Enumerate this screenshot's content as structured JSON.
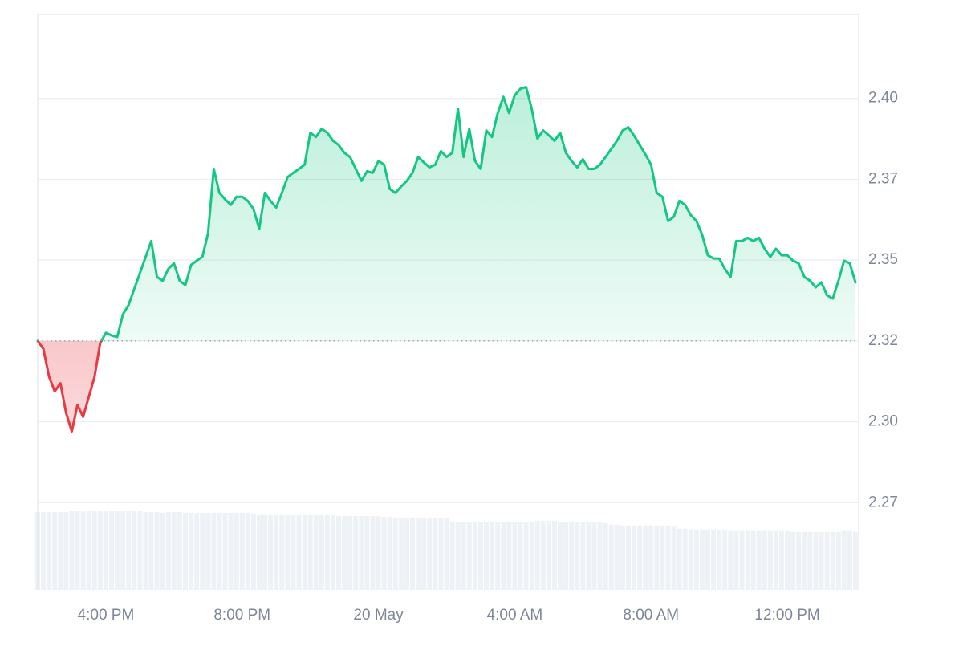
{
  "chart_data": {
    "type": "line",
    "categories": [
      null,
      null,
      null,
      null,
      null,
      null,
      null,
      null,
      null,
      null,
      null,
      null,
      "4:00 PM",
      null,
      null,
      null,
      null,
      null,
      null,
      null,
      null,
      null,
      null,
      null,
      null,
      null,
      null,
      null,
      null,
      null,
      null,
      null,
      null,
      null,
      null,
      null,
      "8:00 PM",
      null,
      null,
      null,
      null,
      null,
      null,
      null,
      null,
      null,
      null,
      null,
      null,
      null,
      null,
      null,
      null,
      null,
      null,
      null,
      null,
      null,
      null,
      null,
      "20 May",
      null,
      null,
      null,
      null,
      null,
      null,
      null,
      null,
      null,
      null,
      null,
      null,
      null,
      null,
      null,
      null,
      null,
      null,
      null,
      null,
      null,
      null,
      null,
      "4:00 AM",
      null,
      null,
      null,
      null,
      null,
      null,
      null,
      null,
      null,
      null,
      null,
      null,
      null,
      null,
      null,
      null,
      null,
      null,
      null,
      null,
      null,
      null,
      null,
      "8:00 AM",
      null,
      null,
      null,
      null,
      null,
      null,
      null,
      null,
      null,
      null,
      null,
      null,
      null,
      null,
      null,
      null,
      null,
      null,
      null,
      null,
      null,
      null,
      null,
      "12:00 PM",
      null,
      null,
      null,
      null,
      null,
      null,
      null,
      null,
      null,
      null,
      null,
      null
    ],
    "values": [
      2.325,
      2.3225,
      2.3139,
      2.3094,
      2.3119,
      2.3027,
      2.297,
      2.3052,
      2.3015,
      2.3077,
      2.3139,
      2.3243,
      2.3275,
      2.3267,
      2.3262,
      2.3332,
      2.3361,
      2.3411,
      2.346,
      2.351,
      2.3559,
      2.3448,
      2.3436,
      2.3473,
      2.349,
      2.3436,
      2.3423,
      2.3485,
      2.3498,
      2.351,
      2.3584,
      2.3782,
      2.3708,
      2.3688,
      2.3671,
      2.3696,
      2.3696,
      2.3683,
      2.3658,
      2.3597,
      2.3708,
      2.3683,
      2.3663,
      2.3708,
      2.3757,
      2.377,
      2.3782,
      2.3795,
      2.3894,
      2.3881,
      2.3906,
      2.3894,
      2.3869,
      2.3856,
      2.3832,
      2.3819,
      2.3782,
      2.3745,
      2.3775,
      2.377,
      2.3807,
      2.3795,
      2.372,
      2.3708,
      2.3728,
      2.3745,
      2.377,
      2.3819,
      2.3802,
      2.3787,
      2.3795,
      2.3837,
      2.3819,
      2.3832,
      2.3968,
      2.3819,
      2.3906,
      2.3807,
      2.3782,
      2.3901,
      2.3881,
      2.3955,
      2.4005,
      2.3955,
      2.401,
      2.403,
      2.4035,
      2.3968,
      2.3876,
      2.3901,
      2.3886,
      2.3869,
      2.3894,
      2.3832,
      2.3807,
      2.3787,
      2.3812,
      2.3782,
      2.3782,
      2.3795,
      2.3819,
      2.3844,
      2.3869,
      2.3901,
      2.3911,
      2.3886,
      2.3856,
      2.3827,
      2.3795,
      2.3708,
      2.3696,
      2.3621,
      2.3634,
      2.3683,
      2.3671,
      2.3639,
      2.3621,
      2.3579,
      2.3515,
      2.3505,
      2.3505,
      2.3473,
      2.3448,
      2.3559,
      2.3559,
      2.3569,
      2.3559,
      2.3569,
      2.3535,
      2.351,
      2.3535,
      2.3515,
      2.3515,
      2.3498,
      2.349,
      2.3448,
      2.3436,
      2.3416,
      2.3431,
      2.3391,
      2.3381,
      2.3436,
      2.3498,
      2.349,
      2.3431
    ],
    "up_color": "#16c784",
    "down_color": "#ea3943",
    "ylim": [
      2.248,
      2.426
    ],
    "yticks": [
      {
        "value": 2.275,
        "label": "2.27"
      },
      {
        "value": 2.3,
        "label": "2.30"
      },
      {
        "value": 2.325,
        "label": "2.32"
      },
      {
        "value": 2.35,
        "label": "2.35"
      },
      {
        "value": 2.375,
        "label": "2.37"
      },
      {
        "value": 2.4,
        "label": "2.40"
      }
    ],
    "grid": true,
    "volume": {
      "color": "#eef2f6",
      "values": [
        98,
        98,
        98,
        98,
        98,
        98,
        99,
        99,
        99,
        99,
        99,
        99,
        99,
        99,
        99,
        99,
        99,
        99,
        99,
        98,
        98,
        98,
        97,
        98,
        98,
        98,
        97,
        97,
        97,
        97,
        97,
        97,
        97,
        97,
        97,
        97,
        97,
        97,
        96,
        94,
        94,
        94,
        94,
        94,
        94,
        94,
        94,
        94,
        94,
        94,
        94,
        94,
        94,
        93,
        93,
        93,
        93,
        93,
        93,
        93,
        93,
        92,
        92,
        91,
        91,
        91,
        91,
        91,
        91,
        90,
        90,
        90,
        90,
        86,
        86,
        86,
        86,
        86,
        86,
        86,
        86,
        86,
        86,
        86,
        86,
        86,
        86,
        86,
        87,
        87,
        87,
        87,
        86,
        86,
        86,
        86,
        86,
        85,
        85,
        85,
        84,
        82,
        82,
        81,
        81,
        81,
        81,
        81,
        81,
        81,
        81,
        81,
        80,
        77,
        77,
        76,
        76,
        76,
        76,
        76,
        76,
        76,
        74,
        74,
        74,
        74,
        74,
        74,
        74,
        74,
        74,
        74,
        74,
        73,
        73,
        73,
        73,
        73,
        73,
        73,
        73,
        73,
        74,
        74,
        73
      ]
    }
  }
}
